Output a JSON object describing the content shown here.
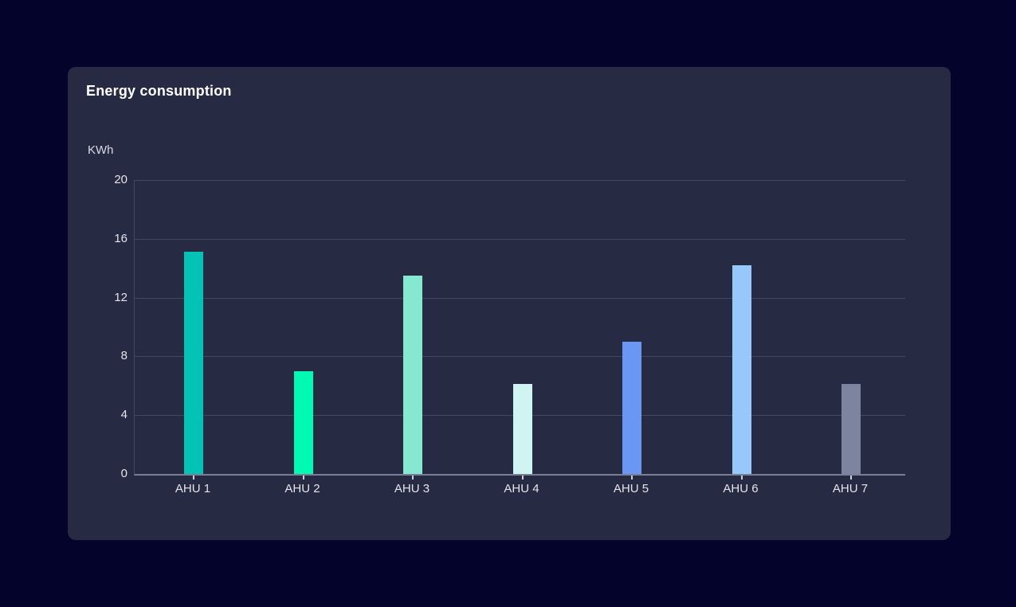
{
  "card": {
    "background": "#262A43"
  },
  "chart_data": {
    "type": "bar",
    "title": "Energy consumption",
    "ylabel": "KWh",
    "xlabel": "",
    "categories": [
      "AHU 1",
      "AHU 2",
      "AHU 3",
      "AHU 4",
      "AHU 5",
      "AHU 6",
      "AHU 7"
    ],
    "values": [
      15.1,
      7,
      13.5,
      6.1,
      9,
      14.2,
      6.1
    ],
    "bar_colors": [
      "#02C3B6",
      "#00FAB4",
      "#86E8D0",
      "#D0F4F2",
      "#6A96F4",
      "#96C8FC",
      "#7D84A0"
    ],
    "ylim": [
      0,
      20
    ],
    "yticks": [
      0,
      4,
      8,
      12,
      16,
      20
    ],
    "grid": true,
    "legend": false
  },
  "colors": {
    "page_bg": "#04032C",
    "card_bg": "#262A43",
    "gridline": "#44485E",
    "axis_line": "#44485E",
    "baseline": "#7A7E95",
    "tick_mark": "#CDCFD9",
    "title_text": "#FFFFFF",
    "axis_text": "#E4E5EB",
    "unit_text": "#D9DBE2"
  }
}
